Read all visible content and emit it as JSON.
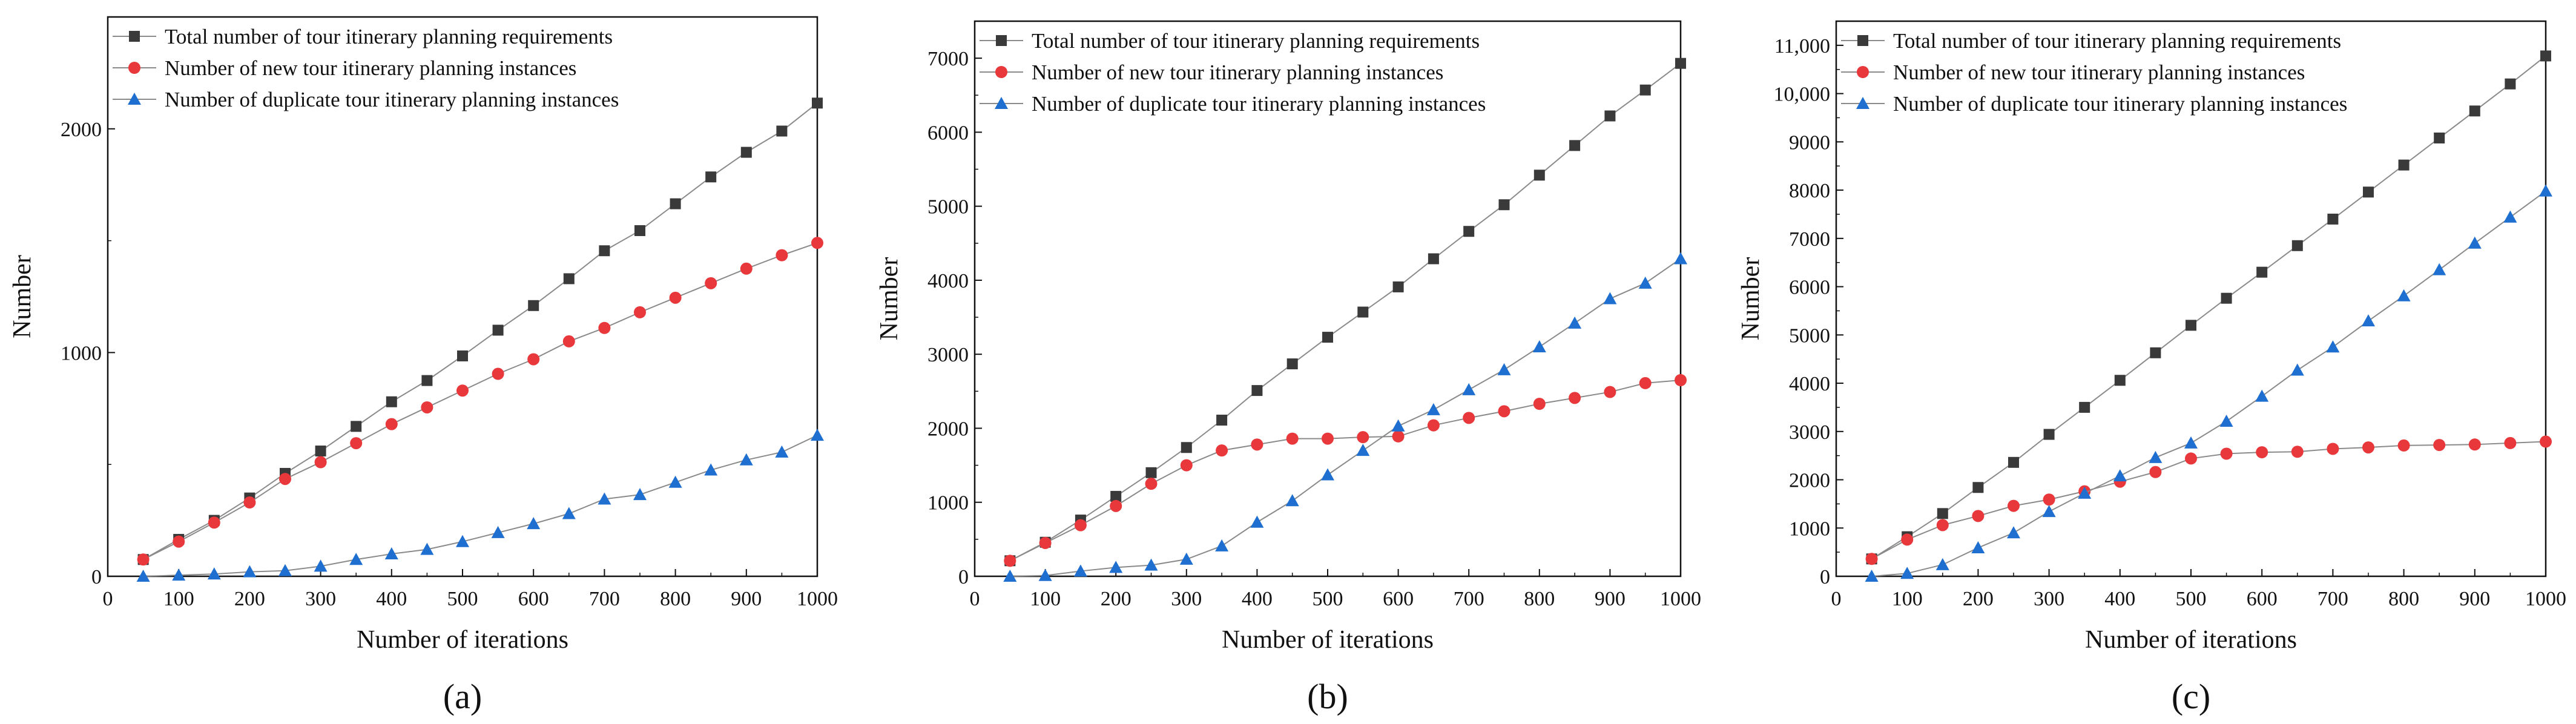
{
  "legend_labels": {
    "total": "Total number of tour itinerary planning requirements",
    "new": "Number of new tour itinerary planning instances",
    "dup": "Number of duplicate tour itinerary planning instances"
  },
  "colors": {
    "total": "#3a3a3a",
    "new": "#e8383b",
    "dup": "#1f6fd1",
    "line": "#8a8a8a"
  },
  "chart_data": [
    {
      "type": "line",
      "caption": "(a)",
      "xlabel": "Number of iterations",
      "ylabel": "Number",
      "xlim": [
        0,
        1000
      ],
      "ylim": [
        0,
        2500
      ],
      "xticks": [
        0,
        100,
        200,
        300,
        400,
        500,
        600,
        700,
        800,
        900,
        1000
      ],
      "xtick_labels": [
        "0",
        "100",
        "200",
        "300",
        "400",
        "500",
        "600",
        "700",
        "800",
        "900",
        "1000"
      ],
      "yticks": [
        0,
        1000,
        2000
      ],
      "ytick_labels": [
        "0",
        "1000",
        "2000"
      ],
      "legend_position": "top-left",
      "x": [
        50,
        100,
        150,
        200,
        250,
        300,
        350,
        400,
        450,
        500,
        550,
        600,
        650,
        700,
        750,
        800,
        850,
        900,
        950,
        1000
      ],
      "series": [
        {
          "key": "total",
          "name": "Total number of tour itinerary planning requirements",
          "marker": "square",
          "values": [
            75,
            165,
            250,
            350,
            460,
            560,
            670,
            780,
            875,
            985,
            1100,
            1210,
            1330,
            1455,
            1545,
            1665,
            1785,
            1895,
            1990,
            2115
          ]
        },
        {
          "key": "new",
          "name": "Number of new tour itinerary planning instances",
          "marker": "circle",
          "values": [
            75,
            155,
            240,
            330,
            435,
            510,
            595,
            680,
            755,
            830,
            905,
            970,
            1050,
            1110,
            1180,
            1245,
            1310,
            1375,
            1435,
            1490
          ]
        },
        {
          "key": "dup",
          "name": "Number of duplicate tour itinerary planning instances",
          "marker": "triangle",
          "values": [
            0,
            5,
            10,
            20,
            25,
            45,
            75,
            100,
            120,
            155,
            195,
            235,
            280,
            345,
            365,
            420,
            475,
            520,
            555,
            630
          ]
        }
      ]
    },
    {
      "type": "line",
      "caption": "(b)",
      "xlabel": "Number of iterations",
      "ylabel": "Number",
      "xlim": [
        0,
        1000
      ],
      "ylim": [
        0,
        7500
      ],
      "xticks": [
        0,
        100,
        200,
        300,
        400,
        500,
        600,
        700,
        800,
        900,
        1000
      ],
      "xtick_labels": [
        "0",
        "100",
        "200",
        "300",
        "400",
        "500",
        "600",
        "700",
        "800",
        "900",
        "1000"
      ],
      "yticks": [
        0,
        1000,
        2000,
        3000,
        4000,
        5000,
        6000,
        7000
      ],
      "ytick_labels": [
        "0",
        "1000",
        "2000",
        "3000",
        "4000",
        "5000",
        "6000",
        "7000"
      ],
      "legend_position": "top-left",
      "x": [
        50,
        100,
        150,
        200,
        250,
        300,
        350,
        400,
        450,
        500,
        550,
        600,
        650,
        700,
        750,
        800,
        850,
        900,
        950,
        1000
      ],
      "series": [
        {
          "key": "total",
          "name": "Total number of tour itinerary planning requirements",
          "marker": "square",
          "values": [
            210,
            460,
            760,
            1080,
            1400,
            1740,
            2110,
            2510,
            2870,
            3230,
            3570,
            3910,
            4290,
            4660,
            5020,
            5420,
            5820,
            6220,
            6570,
            6930
          ]
        },
        {
          "key": "new",
          "name": "Number of new tour itinerary planning instances",
          "marker": "circle",
          "values": [
            210,
            450,
            690,
            950,
            1250,
            1500,
            1700,
            1780,
            1860,
            1860,
            1880,
            1890,
            2040,
            2140,
            2230,
            2330,
            2410,
            2490,
            2610,
            2650
          ]
        },
        {
          "key": "dup",
          "name": "Number of duplicate tour itinerary planning instances",
          "marker": "triangle",
          "values": [
            0,
            10,
            70,
            120,
            150,
            230,
            410,
            730,
            1020,
            1370,
            1700,
            2030,
            2250,
            2520,
            2790,
            3100,
            3420,
            3750,
            3960,
            4290
          ]
        }
      ]
    },
    {
      "type": "line",
      "caption": "(c)",
      "xlabel": "Number of iterations",
      "ylabel": "Number",
      "xlim": [
        0,
        1000
      ],
      "ylim": [
        0,
        11500
      ],
      "xticks": [
        0,
        100,
        200,
        300,
        400,
        500,
        600,
        700,
        800,
        900,
        1000
      ],
      "xtick_labels": [
        "0",
        "100",
        "200",
        "300",
        "400",
        "500",
        "600",
        "700",
        "800",
        "900",
        "1000"
      ],
      "yticks": [
        0,
        1000,
        2000,
        3000,
        4000,
        5000,
        6000,
        7000,
        8000,
        9000,
        10000,
        11000
      ],
      "ytick_labels": [
        "0",
        "1000",
        "2000",
        "3000",
        "4000",
        "5000",
        "6000",
        "7000",
        "8000",
        "9000",
        "10,000",
        "11,000"
      ],
      "legend_position": "top-left",
      "x": [
        50,
        100,
        150,
        200,
        250,
        300,
        350,
        400,
        450,
        500,
        550,
        600,
        650,
        700,
        750,
        800,
        850,
        900,
        950,
        1000
      ],
      "series": [
        {
          "key": "total",
          "name": "Total number of tour itinerary planning requirements",
          "marker": "square",
          "values": [
            360,
            820,
            1300,
            1840,
            2360,
            2940,
            3500,
            4060,
            4630,
            5200,
            5760,
            6300,
            6850,
            7400,
            7960,
            8520,
            9080,
            9640,
            10200,
            10780
          ]
        },
        {
          "key": "new",
          "name": "Number of new tour itinerary planning instances",
          "marker": "circle",
          "values": [
            360,
            760,
            1060,
            1250,
            1460,
            1590,
            1760,
            1960,
            2160,
            2440,
            2540,
            2570,
            2580,
            2640,
            2670,
            2710,
            2720,
            2730,
            2760,
            2790
          ]
        },
        {
          "key": "dup",
          "name": "Number of duplicate tour itinerary planning instances",
          "marker": "triangle",
          "values": [
            0,
            60,
            240,
            590,
            900,
            1340,
            1720,
            2080,
            2460,
            2760,
            3210,
            3730,
            4270,
            4750,
            5290,
            5810,
            6350,
            6900,
            7440,
            7980
          ]
        }
      ]
    }
  ]
}
